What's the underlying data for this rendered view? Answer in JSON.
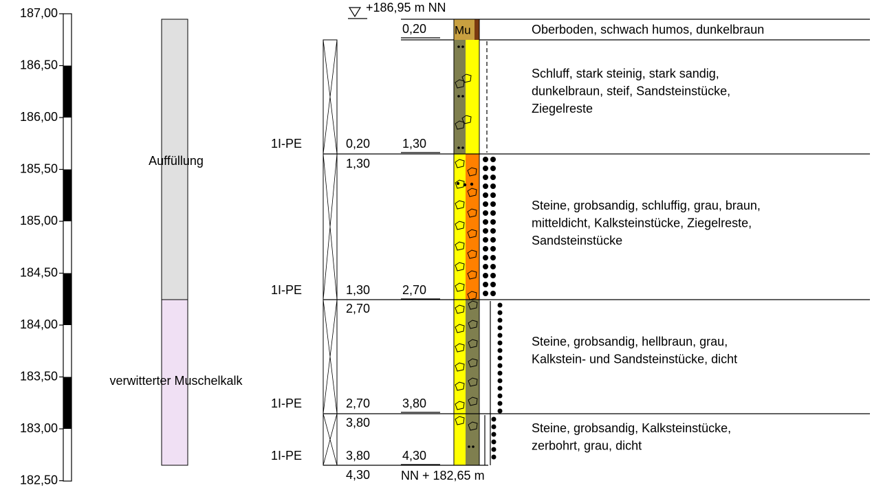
{
  "header": {
    "top_elevation": "+186,95 m NN",
    "first_depth": "0,20",
    "bottom_elevation": "NN + 182,65 m"
  },
  "scale": {
    "labels": [
      "187,00",
      "186,50",
      "186,00",
      "185,50",
      "185,00",
      "184,50",
      "184,00",
      "183,50",
      "183,00",
      "182,50"
    ]
  },
  "units": [
    "Auffüllung",
    "verwitterter Muschelkalk"
  ],
  "soil_code": "Mu",
  "samples": [
    {
      "name": "1I-PE",
      "from": "0,20",
      "to": "1,30"
    },
    {
      "name": "1I-PE",
      "from": "1,30",
      "to": "2,70"
    },
    {
      "name": "1I-PE",
      "from": "2,70",
      "to": "3,80"
    },
    {
      "name": "1I-PE",
      "from": "3,80",
      "to": "4,30"
    }
  ],
  "layer_tops": [
    "1,30",
    "2,70",
    "3,80",
    "4,30"
  ],
  "descriptions": [
    [
      "Oberboden, schwach humos, dunkelbraun"
    ],
    [
      "Schluff, stark steinig, stark sandig,",
      "dunkelbraun, steif, Sandsteinstücke,",
      "Ziegelreste"
    ],
    [
      "Steine, grobsandig, schluffig, grau, braun,",
      "mitteldicht, Kalksteinstücke, Ziegelreste,",
      "Sandsteinstücke"
    ],
    [
      "Steine, grobsandig, hellbraun, grau,",
      "Kalkstein- und Sandsteinstücke, dicht"
    ],
    [
      "Steine, grobsandig, Kalksteinstücke,",
      "zerbohrt, grau, dicht"
    ]
  ]
}
